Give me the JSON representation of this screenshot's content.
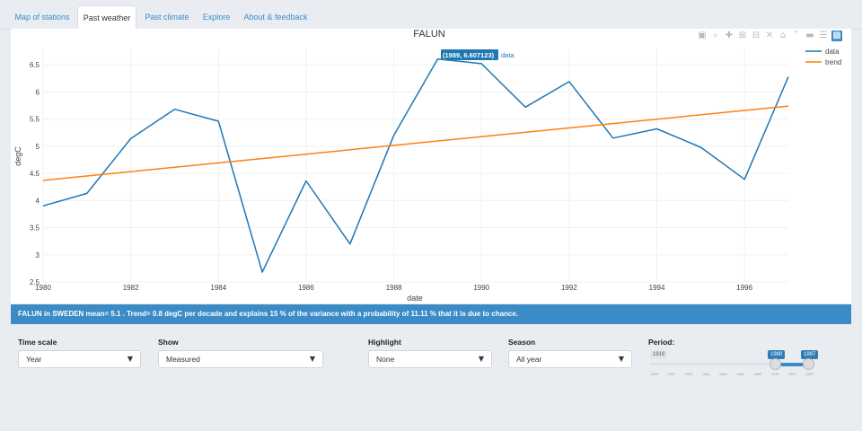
{
  "tabs": [
    {
      "label": "Map of stations"
    },
    {
      "label": "Past weather"
    },
    {
      "label": "Past climate"
    },
    {
      "label": "Explore"
    },
    {
      "label": "About & feedback"
    }
  ],
  "toolbar_icons": [
    "camera-icon",
    "zoom-icon",
    "pan-icon",
    "zoom-in-icon",
    "zoom-out-icon",
    "autoscale-icon",
    "home-icon",
    "spike-lines-icon",
    "hover-closest-icon",
    "hover-compare-icon",
    "plotly-logo-icon"
  ],
  "chart_data": {
    "type": "line",
    "title": "FALUN",
    "xlabel": "date",
    "ylabel": "degC",
    "xlim": [
      1980,
      1997
    ],
    "ylim": [
      2.5,
      6.8
    ],
    "x_ticks": [
      "1980",
      "1982",
      "1984",
      "1986",
      "1988",
      "1990",
      "1992",
      "1994",
      "1996"
    ],
    "y_ticks": [
      "2.5",
      "3",
      "3.5",
      "4",
      "4.5",
      "5",
      "5.5",
      "6",
      "6.5"
    ],
    "series": [
      {
        "name": "data",
        "color": "#1f77b4",
        "x": [
          1980,
          1981,
          1982,
          1983,
          1984,
          1985,
          1986,
          1987,
          1988,
          1989,
          1990,
          1991,
          1992,
          1993,
          1994,
          1995,
          1996,
          1997
        ],
        "values": [
          3.9,
          4.13,
          5.14,
          5.68,
          5.46,
          2.68,
          4.36,
          3.2,
          5.2,
          6.607123,
          6.52,
          5.72,
          6.19,
          5.15,
          5.32,
          4.98,
          4.39,
          6.28
        ]
      },
      {
        "name": "trend",
        "color": "#ff7f0e",
        "x": [
          1980,
          1997
        ],
        "values": [
          4.37,
          5.74
        ]
      }
    ],
    "legend": "top-right",
    "hover": {
      "label": "(1989, 6.607123)",
      "series_name": "data"
    }
  },
  "info_text": "FALUN in SWEDEN mean= 5.1 . Trend= 0.8 degC per decade and explains 15 % of the variance with a probability of 11.11 % that it is due to chance.",
  "controls": {
    "time_scale": {
      "label": "Time scale",
      "value": "Year"
    },
    "show": {
      "label": "Show",
      "value": "Measured"
    },
    "highlight": {
      "label": "Highlight",
      "value": "None"
    },
    "season": {
      "label": "Season",
      "value": "All year"
    },
    "period": {
      "label": "Period:",
      "min": "1916",
      "from": "1980",
      "to": "1997",
      "ticks": [
        "1916",
        "1927",
        "1933",
        "1944",
        "1952",
        "1961",
        "1969",
        "1978",
        "1987",
        "1997"
      ]
    }
  },
  "colors": {
    "accent": "#3a8bc6",
    "data_line": "#1f77b4",
    "trend_line": "#ff7f0e"
  }
}
